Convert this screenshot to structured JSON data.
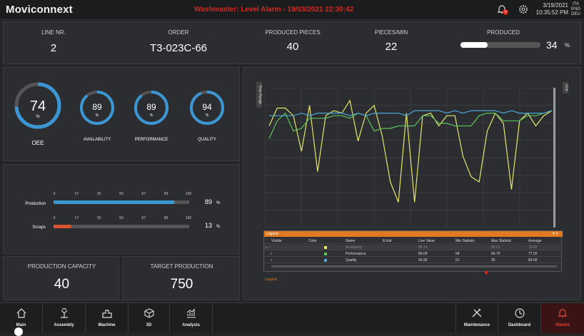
{
  "app": {
    "logo": "Moviconnext",
    "alarm_text": "Washmaster: Level Alarm - 19/03/2021 22:30:42",
    "notification_count": "5",
    "date": "3/19/2021",
    "time": "10:35:52 PM",
    "languages": [
      "ITA",
      "ENG",
      "DEU"
    ]
  },
  "kpi": {
    "line_label": "LINE Nr.",
    "line_value": "2",
    "order_label": "ORDER",
    "order_value": "T3-023C-66",
    "pieces_label": "PRODUCED PIECES",
    "pieces_value": "40",
    "rate_label": "PIECES/MIN",
    "rate_value": "22",
    "produced_label": "PRODUCED",
    "produced_value": "34",
    "produced_unit": "%",
    "produced_fraction": 0.34
  },
  "gauges": {
    "oee": {
      "value": "74",
      "unit": "%",
      "label": "OEE",
      "fraction": 0.74
    },
    "availability": {
      "value": "89",
      "unit": "%",
      "label": "AVAILABILITY",
      "fraction": 0.89
    },
    "performance": {
      "value": "89",
      "unit": "%",
      "label": "PERFORMANCE",
      "fraction": 0.89
    },
    "quality": {
      "value": "94",
      "unit": "%",
      "label": "QUALITY",
      "fraction": 0.94
    }
  },
  "bars": {
    "ticks": [
      "0",
      "17",
      "33",
      "50",
      "67",
      "83",
      "100"
    ],
    "production": {
      "label": "Production",
      "value": "89",
      "unit": "%",
      "fraction": 0.89
    },
    "scraps": {
      "label": "Scraps",
      "value": "13",
      "unit": "%",
      "fraction": 0.13
    }
  },
  "capacity": {
    "label": "PRODUCTION CAPACITY",
    "value": "40"
  },
  "target": {
    "label": "TARGET PRODUCTION",
    "value": "750"
  },
  "trend": {
    "time_range_label": "Time Range",
    "grid_label": "Grid",
    "legend_title": "Legend",
    "legend_footer": "Legend",
    "columns": [
      "Visible",
      "Color",
      "Name",
      "EUnit",
      "Live Value",
      "Min Statistic",
      "Max Statistic",
      "Average"
    ],
    "rows": [
      {
        "name": "Availability",
        "color": "#e6e66a",
        "live": "89.74",
        "min": "",
        "max": "89.61",
        "avg": "78.02"
      },
      {
        "name": "Performance",
        "color": "#5bc25b",
        "live": "89.09",
        "min": "54",
        "max": "89.75",
        "avg": "77.92"
      },
      {
        "name": "Quality",
        "color": "#4aa8d8",
        "live": "93.95",
        "min": "51",
        "max": "95",
        "avg": "84.66"
      }
    ]
  },
  "chart_data": {
    "type": "line",
    "x": [
      1,
      2,
      3,
      4,
      5,
      6,
      7,
      8,
      9,
      10,
      11,
      12,
      13,
      14,
      15,
      16,
      17,
      18,
      19,
      20,
      21,
      22,
      23,
      24,
      25,
      26,
      27,
      28,
      29,
      30,
      31,
      32,
      33,
      34,
      35,
      36
    ],
    "series": [
      {
        "color": "#e6e66a",
        "values": [
          80,
          87,
          87,
          84,
          70,
          88,
          62,
          84,
          86,
          85,
          90,
          74,
          85,
          88,
          76,
          58,
          50,
          85,
          50,
          84,
          85,
          80,
          84,
          84,
          68,
          60,
          58,
          78,
          85,
          81,
          55,
          82,
          85,
          80,
          84,
          86
        ]
      },
      {
        "color": "#5bc25b",
        "values": [
          75,
          82,
          85,
          78,
          79,
          83,
          83,
          83,
          84,
          84,
          83,
          85,
          84,
          78,
          79,
          79,
          80,
          80,
          80,
          84,
          84,
          81,
          81,
          80,
          80,
          80,
          84,
          85,
          85,
          82,
          82,
          82,
          84,
          84,
          85,
          86
        ]
      },
      {
        "color": "#4aa8d8",
        "values": [
          84,
          84,
          84,
          84,
          85,
          84,
          85,
          85,
          85,
          85,
          84,
          85,
          84,
          85,
          85,
          85,
          85,
          84,
          86,
          86,
          86,
          86,
          85,
          86,
          85,
          86,
          86,
          86,
          86,
          85,
          86,
          85,
          85,
          85,
          85,
          86
        ]
      }
    ],
    "ylim": [
      40,
      95
    ]
  },
  "nav": {
    "items": [
      {
        "label": "Main"
      },
      {
        "label": "Assembly"
      },
      {
        "label": "Machine"
      },
      {
        "label": "3D"
      },
      {
        "label": "Analysis"
      },
      {
        "label": "Maintenance"
      },
      {
        "label": "Dashboard"
      },
      {
        "label": "Alarms"
      }
    ]
  },
  "colors": {
    "accent": "#3b97d4",
    "scrap": "#d9542c",
    "alarm": "#d9261c",
    "legend_header": "#e07a20"
  }
}
